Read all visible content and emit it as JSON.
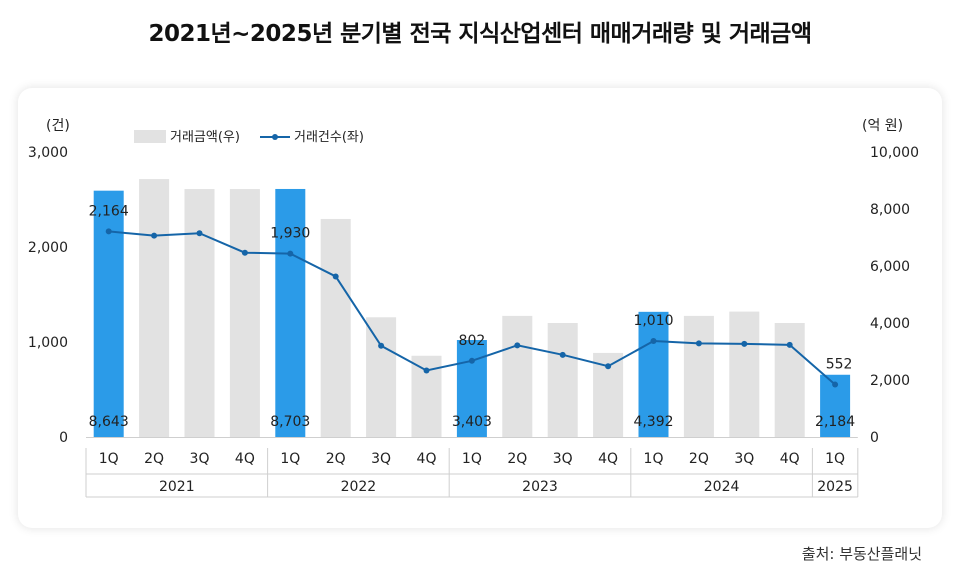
{
  "title": "2021년~2025년 분기별 전국 지식산업센터 매매거래량 및 거래금액",
  "source": "출처: 부동산플래닛",
  "chart_data": {
    "type": "bar+line",
    "left_unit": "(건)",
    "right_unit": "(억 원)",
    "legend": {
      "bar_label": "거래금액(우)",
      "line_label": "거래건수(좌)",
      "placement": "top-left"
    },
    "left_ylim": [
      0,
      3000
    ],
    "left_ticks": [
      "0",
      "1,000",
      "2,000",
      "3,000"
    ],
    "right_ylim": [
      0,
      10000
    ],
    "right_ticks": [
      "0",
      "2,000",
      "4,000",
      "6,000",
      "8,000",
      "10,000"
    ],
    "categories": [
      "1Q",
      "2Q",
      "3Q",
      "4Q",
      "1Q",
      "2Q",
      "3Q",
      "4Q",
      "1Q",
      "2Q",
      "3Q",
      "4Q",
      "1Q",
      "2Q",
      "3Q",
      "4Q",
      "1Q"
    ],
    "years": [
      {
        "label": "2021",
        "count": 4
      },
      {
        "label": "2022",
        "count": 4
      },
      {
        "label": "2023",
        "count": 4
      },
      {
        "label": "2024",
        "count": 4
      },
      {
        "label": "2025",
        "count": 1
      }
    ],
    "series": [
      {
        "name": "거래금액(우)",
        "kind": "bar",
        "axis": "right",
        "values": [
          8643,
          9050,
          8700,
          8700,
          8703,
          7650,
          4200,
          2850,
          3403,
          4250,
          4000,
          2950,
          4392,
          4250,
          4400,
          4000,
          2184
        ],
        "highlight": [
          true,
          false,
          false,
          false,
          true,
          false,
          false,
          false,
          true,
          false,
          false,
          false,
          true,
          false,
          false,
          false,
          true
        ],
        "labels": [
          "8,643",
          "",
          "",
          "",
          "8,703",
          "",
          "",
          "",
          "3,403",
          "",
          "",
          "",
          "4,392",
          "",
          "",
          "",
          "2,184"
        ]
      },
      {
        "name": "거래건수(좌)",
        "kind": "line",
        "axis": "left",
        "values": [
          2164,
          2120,
          2145,
          1940,
          1930,
          1690,
          960,
          700,
          802,
          965,
          865,
          745,
          1010,
          985,
          980,
          970,
          552
        ],
        "labels": [
          "2,164",
          "",
          "",
          "",
          "1,930",
          "",
          "",
          "",
          "802",
          "",
          "",
          "",
          "1,010",
          "",
          "",
          "",
          "552"
        ]
      }
    ],
    "colors": {
      "bar_highlight": "#2b9be8",
      "bar_normal": "#e2e2e2",
      "line": "#1565a8"
    },
    "grid": false
  }
}
